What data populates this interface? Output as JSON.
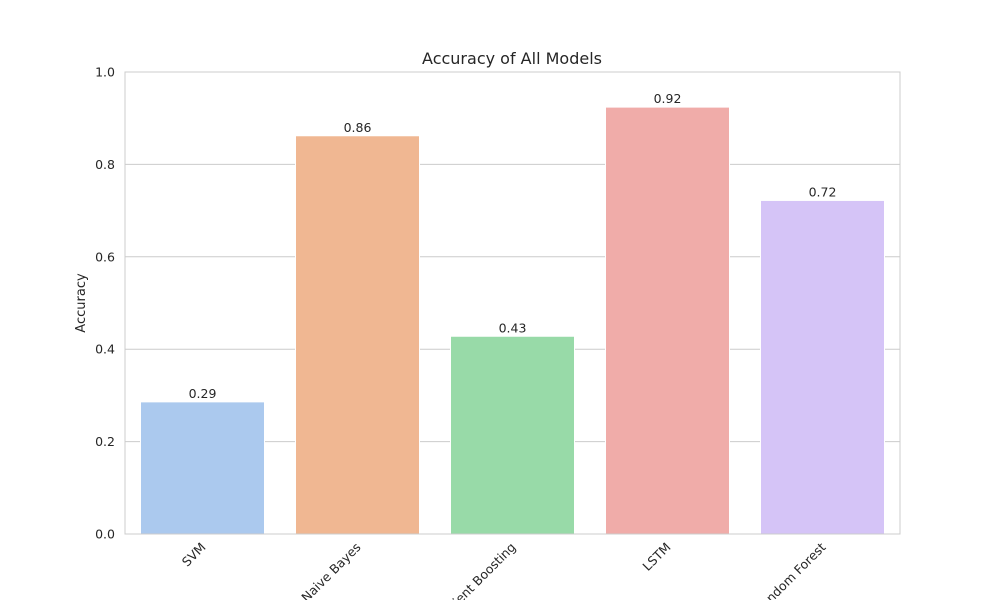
{
  "chart_data": {
    "type": "bar",
    "title": "Accuracy of All Models",
    "xlabel": "",
    "ylabel": "Accuracy",
    "ylim": [
      0,
      1.0
    ],
    "yticks": [
      0.0,
      0.2,
      0.4,
      0.6,
      0.8,
      1.0
    ],
    "ytick_labels": [
      "0.0",
      "0.2",
      "0.4",
      "0.6",
      "0.8",
      "1.0"
    ],
    "grid": true,
    "categories": [
      "SVM",
      "Naive Bayes",
      "Gradient Boosting",
      "LSTM",
      "Random Forest"
    ],
    "values": [
      0.286,
      0.862,
      0.428,
      0.924,
      0.722
    ],
    "value_labels": [
      "0.29",
      "0.86",
      "0.43",
      "0.92",
      "0.72"
    ],
    "colors": [
      "#abc9ee",
      "#f0b792",
      "#98daa8",
      "#f0aca9",
      "#d5c4f7"
    ],
    "grid_color": "#cccccc",
    "text_color": "#262626"
  }
}
